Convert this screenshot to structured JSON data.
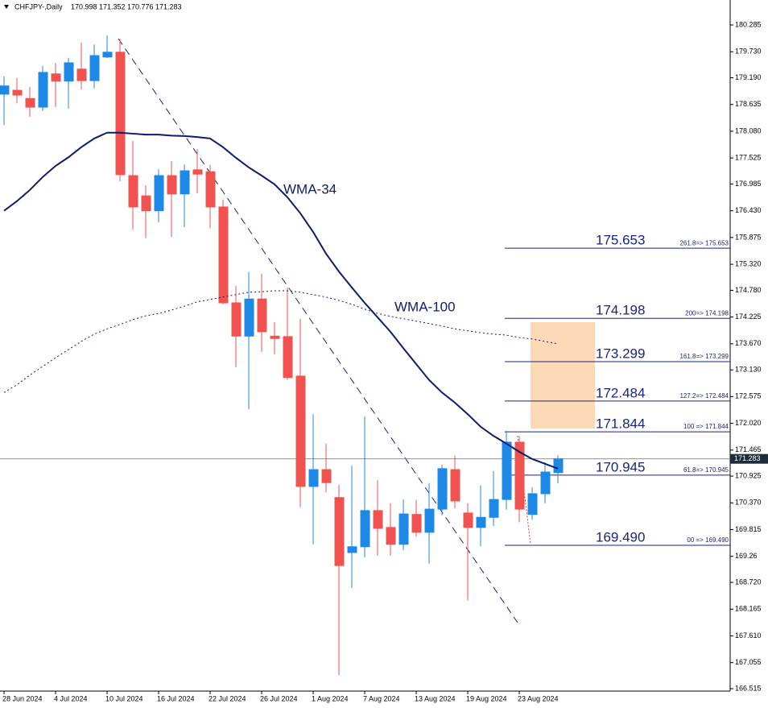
{
  "chart_data": {
    "type": "candlestick",
    "title": "CHFJPY-,Daily",
    "categories": [
      "28 Jun 2024",
      null,
      null,
      null,
      "4 Jul 2024",
      null,
      null,
      null,
      "10 Jul 2024",
      null,
      null,
      null,
      "16 Jul 2024",
      null,
      null,
      null,
      "22 Jul 2024",
      null,
      null,
      null,
      "26 Jul 2024",
      null,
      null,
      null,
      "1 Aug 2024",
      null,
      null,
      null,
      "7 Aug 2024",
      null,
      null,
      null,
      "13 Aug 2024",
      null,
      null,
      null,
      "19 Aug 2024",
      null,
      null,
      null,
      "23 Aug 2024",
      null,
      null,
      null
    ],
    "open": [
      178.85,
      178.93,
      178.76,
      178.58,
      179.27,
      179.12,
      179.37,
      179.13,
      179.62,
      179.72,
      177.16,
      176.74,
      176.43,
      177.16,
      176.78,
      177.28,
      177.24,
      176.51,
      174.52,
      173.83,
      174.6,
      173.83,
      173.82,
      173.0,
      170.71,
      171.06,
      170.48,
      169.34,
      169.46,
      170.21,
      169.86,
      169.51,
      170.13,
      169.76,
      170.24,
      171.06,
      170.16,
      169.86,
      170.07,
      170.44,
      171.63,
      170.13,
      170.56,
      170.998
    ],
    "high": [
      179.22,
      179.18,
      179.0,
      179.43,
      179.5,
      179.6,
      179.92,
      179.88,
      180.07,
      180.0,
      177.88,
      176.96,
      177.29,
      177.46,
      177.39,
      177.71,
      177.38,
      176.66,
      174.87,
      175.16,
      175.12,
      174.12,
      174.84,
      174.19,
      172.21,
      171.6,
      170.74,
      171.14,
      172.16,
      170.84,
      170.36,
      170.44,
      170.43,
      170.78,
      171.16,
      171.35,
      170.36,
      170.73,
      171.03,
      171.86,
      171.76,
      170.69,
      171.21,
      171.352
    ],
    "low": [
      178.21,
      178.66,
      178.38,
      178.5,
      178.58,
      178.55,
      178.95,
      178.97,
      179.6,
      177.04,
      176.04,
      175.86,
      176.19,
      175.89,
      176.09,
      176.79,
      176.07,
      174.49,
      173.18,
      172.31,
      173.5,
      173.45,
      172.92,
      170.28,
      169.51,
      170.59,
      166.8,
      168.6,
      169.24,
      169.27,
      169.27,
      169.39,
      169.67,
      169.11,
      170.11,
      170.26,
      168.35,
      169.47,
      169.89,
      170.23,
      169.97,
      170.02,
      170.36,
      170.776
    ],
    "close": [
      179.02,
      178.83,
      178.58,
      179.3,
      179.12,
      179.5,
      179.13,
      179.65,
      179.72,
      177.18,
      176.51,
      176.43,
      177.16,
      176.78,
      177.26,
      177.19,
      176.51,
      174.52,
      173.83,
      174.6,
      173.92,
      173.78,
      172.97,
      170.71,
      171.06,
      170.79,
      169.07,
      169.46,
      170.21,
      169.84,
      169.51,
      170.14,
      169.76,
      170.24,
      171.08,
      170.41,
      169.86,
      170.07,
      170.44,
      171.63,
      170.24,
      170.56,
      171.01,
      171.283
    ],
    "bull_color": "#1e88e5",
    "bear_color": "#ef5350",
    "series": [
      {
        "name": "WMA-34",
        "color": "#0d1b6e",
        "dashed": false,
        "values": [
          176.43,
          176.63,
          176.86,
          177.13,
          177.36,
          177.54,
          177.75,
          177.93,
          178.05,
          178.05,
          178.03,
          178.01,
          178.01,
          177.99,
          177.98,
          177.96,
          177.93,
          177.75,
          177.53,
          177.33,
          177.16,
          176.98,
          176.71,
          176.38,
          175.99,
          175.54,
          175.17,
          174.84,
          174.52,
          174.22,
          173.92,
          173.58,
          173.25,
          172.92,
          172.66,
          172.45,
          172.21,
          171.95,
          171.76,
          171.6,
          171.43,
          171.28,
          171.18,
          171.08
        ]
      },
      {
        "name": "WMA-100",
        "color": "#0d1b6e",
        "dashed": true,
        "values": [
          172.66,
          172.82,
          173.02,
          173.2,
          173.38,
          173.55,
          173.72,
          173.87,
          173.98,
          174.07,
          174.17,
          174.25,
          174.3,
          174.37,
          174.45,
          174.54,
          174.59,
          174.64,
          174.69,
          174.74,
          174.75,
          174.77,
          174.77,
          174.74,
          174.69,
          174.64,
          174.57,
          174.49,
          174.39,
          174.3,
          174.24,
          174.19,
          174.14,
          174.09,
          174.04,
          173.98,
          173.94,
          173.9,
          173.87,
          173.85,
          173.8,
          173.77,
          173.72,
          173.67
        ]
      }
    ],
    "fib_levels": [
      {
        "value": 175.653,
        "label": "175.653",
        "tag": "261.8=> 175.653"
      },
      {
        "value": 174.198,
        "label": "174.198",
        "tag": "200=> 174.198"
      },
      {
        "value": 173.299,
        "label": "173.299",
        "tag": "161.8=> 173.299"
      },
      {
        "value": 172.484,
        "label": "172.484",
        "tag": "127.2=> 172.484"
      },
      {
        "value": 171.844,
        "label": "171.844",
        "tag": "100 => 171.844"
      },
      {
        "value": 170.945,
        "label": "170.945",
        "tag": "61.8=> 170.945"
      },
      {
        "value": 169.49,
        "label": "169.490",
        "tag": "00 => 169.490"
      }
    ],
    "fib_color": "#1a237e",
    "ylim": [
      166.465,
      180.803
    ],
    "yticks": [
      180.285,
      {
        "value": 179.73,
        "label": "179.730"
      },
      {
        "value": 179.19,
        "label": "179.190"
      },
      178.635,
      {
        "value": 178.08,
        "label": "178.080"
      },
      177.525,
      176.985,
      {
        "value": 176.43,
        "label": "176.430"
      },
      175.875,
      {
        "value": 175.32,
        "label": "175.320"
      },
      {
        "value": 174.78,
        "label": "174.780"
      },
      174.225,
      {
        "value": 173.67,
        "label": "173.670"
      },
      {
        "value": 173.13,
        "label": "173.130"
      },
      172.575,
      {
        "value": 172.02,
        "label": "172.020"
      },
      171.465,
      170.925,
      {
        "value": 170.37,
        "label": "170.370"
      },
      169.815,
      169.26,
      {
        "value": 168.72,
        "label": "168.720"
      },
      168.165,
      {
        "value": 167.61,
        "label": "167.610"
      },
      167.055,
      166.515
    ]
  }
}
